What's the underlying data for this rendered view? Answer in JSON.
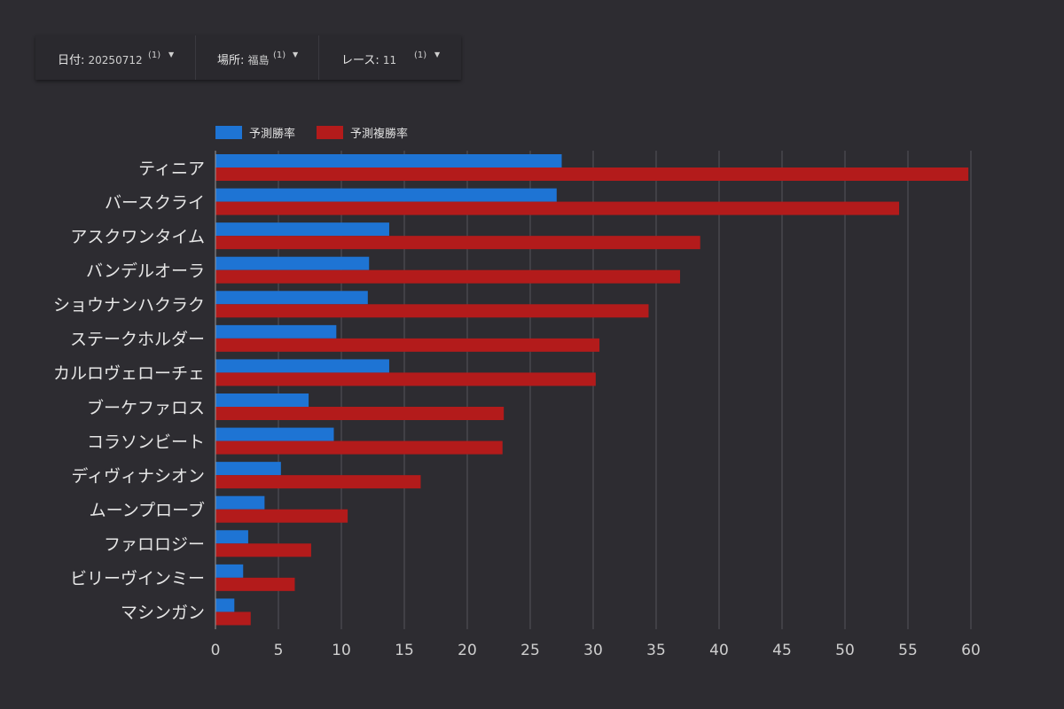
{
  "filters": [
    {
      "label": "日付",
      "value": "20250712",
      "count": "(1)"
    },
    {
      "label": "場所",
      "value": "福島",
      "count": "(1)"
    },
    {
      "label": "レース",
      "value": "11",
      "count": "(1)"
    }
  ],
  "colors": {
    "series1": "#1e74d4",
    "series2": "#b31b1b",
    "gridline": "#55545a",
    "background": "#2d2c31"
  },
  "chart_data": {
    "type": "bar",
    "orientation": "horizontal",
    "title": "",
    "xlabel": "",
    "ylabel": "",
    "xlim": [
      0,
      60
    ],
    "x_ticks": [
      0,
      5,
      10,
      15,
      20,
      25,
      30,
      35,
      40,
      45,
      50,
      55,
      60
    ],
    "grid": true,
    "legend_position": "top-left",
    "categories": [
      "ティニア",
      "バースクライ",
      "アスクワンタイム",
      "バンデルオーラ",
      "ショウナンハクラク",
      "ステークホルダー",
      "カルロヴェローチェ",
      "ブーケファロス",
      "コラソンビート",
      "ディヴィナシオン",
      "ムーンプローブ",
      "ファロロジー",
      "ビリーヴインミー",
      "マシンガン"
    ],
    "series": [
      {
        "name": "予測勝率",
        "color": "#1e74d4",
        "values": [
          27.5,
          27.1,
          13.8,
          12.2,
          12.1,
          9.6,
          13.8,
          7.4,
          9.4,
          5.2,
          3.9,
          2.6,
          2.2,
          1.5
        ]
      },
      {
        "name": "予測複勝率",
        "color": "#b31b1b",
        "values": [
          59.8,
          54.3,
          38.5,
          36.9,
          34.4,
          30.5,
          30.2,
          22.9,
          22.8,
          16.3,
          10.5,
          7.6,
          6.3,
          2.8
        ]
      }
    ]
  }
}
